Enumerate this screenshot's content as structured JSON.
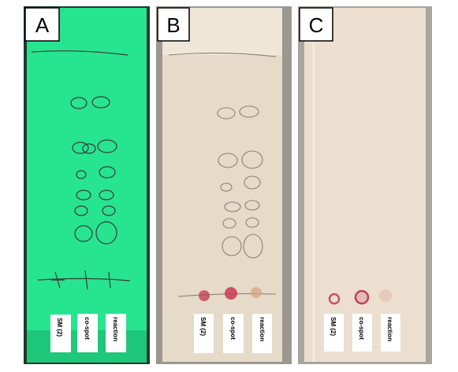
{
  "panels": [
    {
      "label": "A",
      "lanes": [
        "SM (2)",
        "co-spot",
        "reaction"
      ]
    },
    {
      "label": "B",
      "lanes": [
        "SM (2)",
        "co-spot",
        "reaction"
      ]
    },
    {
      "label": "C",
      "lanes": [
        "SM (2)",
        "co-spot",
        "reaction"
      ]
    }
  ]
}
